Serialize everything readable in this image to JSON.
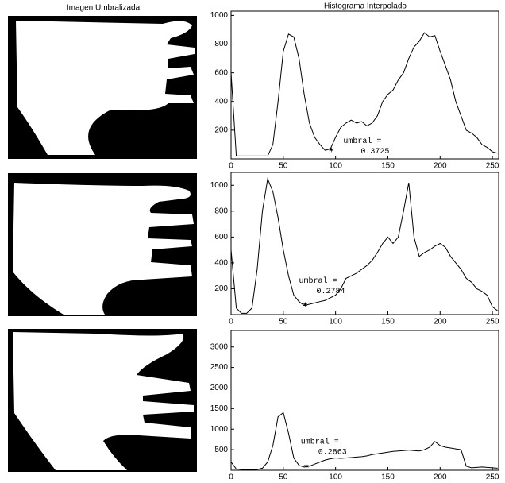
{
  "column_titles": [
    "Imagen Umbralizada",
    "Histograma Interpolado"
  ],
  "chart_data": [
    {
      "type": "line",
      "color": "#000000",
      "x": [
        0,
        5,
        10,
        15,
        20,
        25,
        30,
        35,
        40,
        45,
        50,
        55,
        60,
        65,
        70,
        75,
        80,
        85,
        90,
        95,
        100,
        105,
        110,
        115,
        120,
        125,
        130,
        135,
        140,
        145,
        150,
        155,
        160,
        165,
        170,
        175,
        180,
        185,
        190,
        195,
        200,
        205,
        210,
        215,
        220,
        225,
        230,
        235,
        240,
        245,
        250,
        255
      ],
      "values": [
        600,
        20,
        20,
        20,
        20,
        20,
        20,
        20,
        100,
        400,
        750,
        870,
        850,
        700,
        450,
        250,
        150,
        100,
        60,
        70,
        150,
        220,
        250,
        270,
        250,
        260,
        230,
        250,
        300,
        400,
        450,
        480,
        550,
        600,
        700,
        780,
        820,
        880,
        850,
        860,
        750,
        650,
        550,
        400,
        300,
        200,
        180,
        150,
        100,
        80,
        50,
        40
      ],
      "xlim": [
        0,
        256
      ],
      "ylim": [
        0,
        1030
      ],
      "xticks": [
        0,
        50,
        100,
        150,
        200,
        250
      ],
      "yticks": [
        200,
        400,
        600,
        800,
        1000
      ],
      "marker": {
        "x": 96,
        "y": 60
      },
      "annotation": [
        "umbral =",
        "0.3725"
      ]
    },
    {
      "type": "line",
      "color": "#000000",
      "x": [
        0,
        5,
        10,
        15,
        20,
        25,
        30,
        35,
        40,
        45,
        50,
        55,
        60,
        65,
        70,
        75,
        80,
        85,
        90,
        95,
        100,
        105,
        110,
        115,
        120,
        125,
        130,
        135,
        140,
        145,
        150,
        155,
        160,
        165,
        170,
        175,
        180,
        185,
        190,
        195,
        200,
        205,
        210,
        215,
        220,
        225,
        230,
        235,
        240,
        245,
        250,
        255
      ],
      "values": [
        500,
        50,
        10,
        10,
        50,
        350,
        800,
        1050,
        950,
        750,
        500,
        300,
        150,
        100,
        70,
        80,
        90,
        100,
        110,
        130,
        150,
        200,
        280,
        300,
        320,
        350,
        380,
        420,
        480,
        550,
        600,
        550,
        600,
        800,
        1020,
        600,
        450,
        480,
        500,
        530,
        550,
        520,
        450,
        400,
        350,
        280,
        250,
        200,
        180,
        150,
        60,
        30
      ],
      "xlim": [
        0,
        256
      ],
      "ylim": [
        0,
        1100
      ],
      "xticks": [
        0,
        50,
        100,
        150,
        200,
        250
      ],
      "yticks": [
        200,
        400,
        600,
        800,
        1000
      ],
      "marker": {
        "x": 71,
        "y": 70
      },
      "annotation": [
        "umbral =",
        "0.2784"
      ]
    },
    {
      "type": "line",
      "color": "#000000",
      "x": [
        0,
        5,
        10,
        15,
        20,
        25,
        30,
        35,
        40,
        45,
        50,
        55,
        60,
        65,
        70,
        75,
        80,
        85,
        90,
        95,
        100,
        105,
        110,
        115,
        120,
        125,
        130,
        135,
        140,
        145,
        150,
        155,
        160,
        165,
        170,
        175,
        180,
        185,
        190,
        195,
        200,
        205,
        210,
        215,
        220,
        225,
        230,
        235,
        240,
        245,
        250,
        255
      ],
      "values": [
        200,
        30,
        20,
        20,
        20,
        20,
        50,
        200,
        600,
        1300,
        1400,
        900,
        300,
        120,
        80,
        100,
        150,
        200,
        250,
        280,
        300,
        290,
        300,
        310,
        320,
        330,
        350,
        380,
        400,
        420,
        440,
        460,
        470,
        480,
        490,
        480,
        470,
        500,
        560,
        700,
        600,
        560,
        540,
        520,
        500,
        100,
        60,
        70,
        80,
        70,
        60,
        50
      ],
      "xlim": [
        0,
        256
      ],
      "ylim": [
        0,
        3400
      ],
      "xticks": [
        0,
        50,
        100,
        150,
        200,
        250
      ],
      "yticks": [
        500,
        1000,
        1500,
        2000,
        2500,
        3000
      ],
      "marker": {
        "x": 72,
        "y": 80
      },
      "annotation": [
        "umbral =",
        "0.2863"
      ]
    }
  ]
}
